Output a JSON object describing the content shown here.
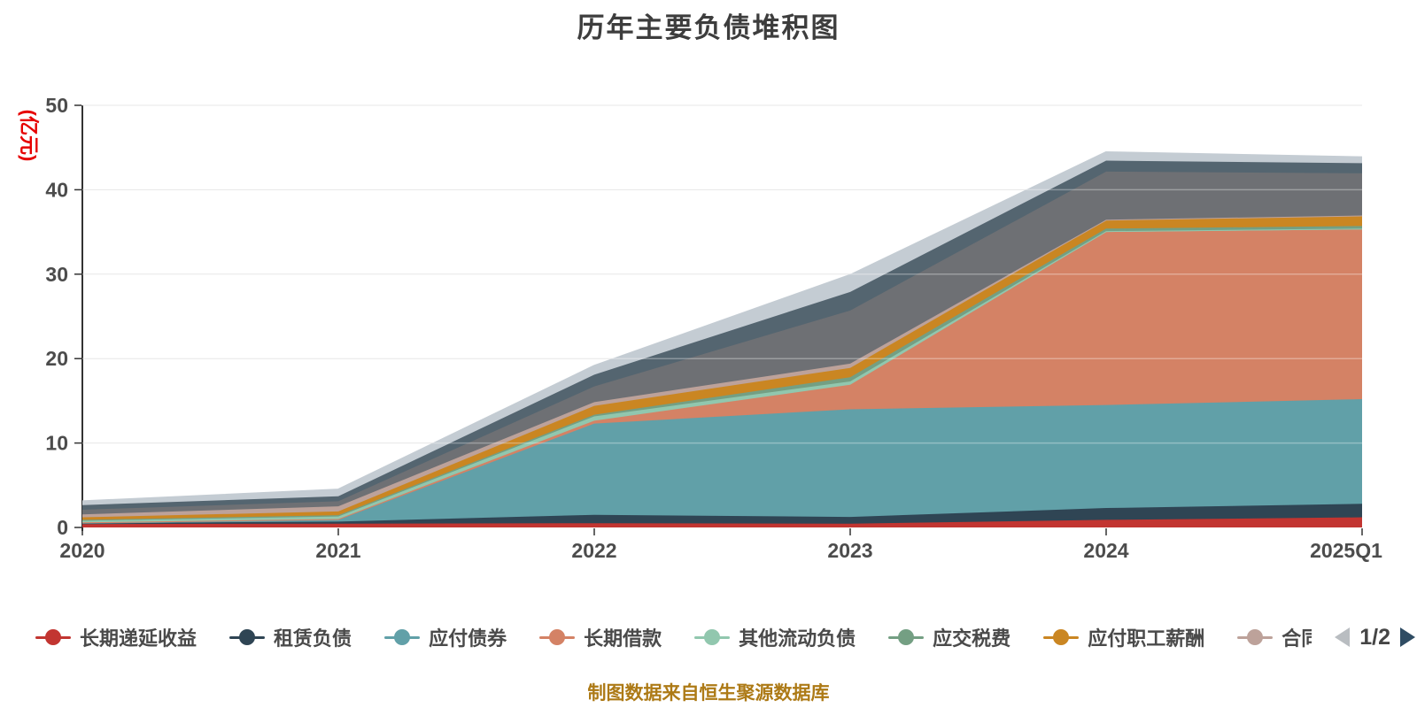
{
  "chart_data": {
    "type": "area",
    "stacked": true,
    "title": "历年主要负债堆积图",
    "unit_label": "(亿元)",
    "footer": "制图数据来自恒生聚源数据库",
    "categories": [
      "2020",
      "2021",
      "2022",
      "2023",
      "2024",
      "2025Q1"
    ],
    "y_ticks": [
      0,
      10,
      20,
      30,
      40,
      50
    ],
    "ylim": [
      0,
      50
    ],
    "grid": true,
    "legend_position": "bottom",
    "legend_pagination": {
      "current": "1/2",
      "prev_enabled": false,
      "next_enabled": true
    },
    "series": [
      {
        "name": "长期递延收益",
        "color": "#c23531",
        "in_legend": true,
        "values": [
          0.4,
          0.45,
          0.5,
          0.45,
          0.9,
          1.2
        ]
      },
      {
        "name": "租赁负债",
        "color": "#2f4554",
        "in_legend": true,
        "values": [
          0.1,
          0.25,
          1.0,
          0.8,
          1.4,
          1.6
        ]
      },
      {
        "name": "应付债券",
        "color": "#61a0a8",
        "in_legend": true,
        "values": [
          0.05,
          0.2,
          10.8,
          12.75,
          12.2,
          12.4
        ]
      },
      {
        "name": "长期借款",
        "color": "#d48265",
        "in_legend": true,
        "values": [
          0.05,
          0.1,
          0.35,
          2.9,
          20.5,
          20.1
        ]
      },
      {
        "name": "其他流动负债",
        "color": "#91c7ae",
        "in_legend": true,
        "values": [
          0.2,
          0.3,
          0.5,
          0.4,
          0.1,
          0.1
        ]
      },
      {
        "name": "应交税费",
        "color": "#749f83",
        "in_legend": true,
        "values": [
          0.1,
          0.15,
          0.2,
          0.5,
          0.3,
          0.3
        ]
      },
      {
        "name": "应付职工薪酬",
        "color": "#ca8622",
        "in_legend": true,
        "values": [
          0.3,
          0.45,
          1.05,
          1.1,
          1.0,
          1.2
        ]
      },
      {
        "name": "合同",
        "color": "#bda29a",
        "in_legend": true,
        "clip": true,
        "values": [
          0.35,
          0.6,
          0.45,
          0.5,
          0.05,
          0.05
        ]
      },
      {
        "name": "",
        "color": "#6e7074",
        "in_legend": false,
        "values": [
          0.55,
          0.6,
          1.85,
          6.3,
          5.7,
          5.0
        ]
      },
      {
        "name": "",
        "color": "#546570",
        "in_legend": false,
        "values": [
          0.55,
          0.6,
          1.4,
          2.2,
          1.3,
          1.2
        ]
      },
      {
        "name": "",
        "color": "#c4ccd3",
        "in_legend": false,
        "values": [
          0.45,
          0.8,
          1.05,
          2.0,
          1.0,
          0.7
        ]
      }
    ]
  },
  "colors": {
    "title": "#3d3d3d",
    "axis_label": "#4c4c4c",
    "axis_line": "#333333",
    "gridline": "#dcdcdc",
    "unit_label": "#e60000",
    "footer": "#ad7a16",
    "pager_prev_arrow": "#b9bdc1",
    "pager_next_arrow": "#2f4c63"
  }
}
